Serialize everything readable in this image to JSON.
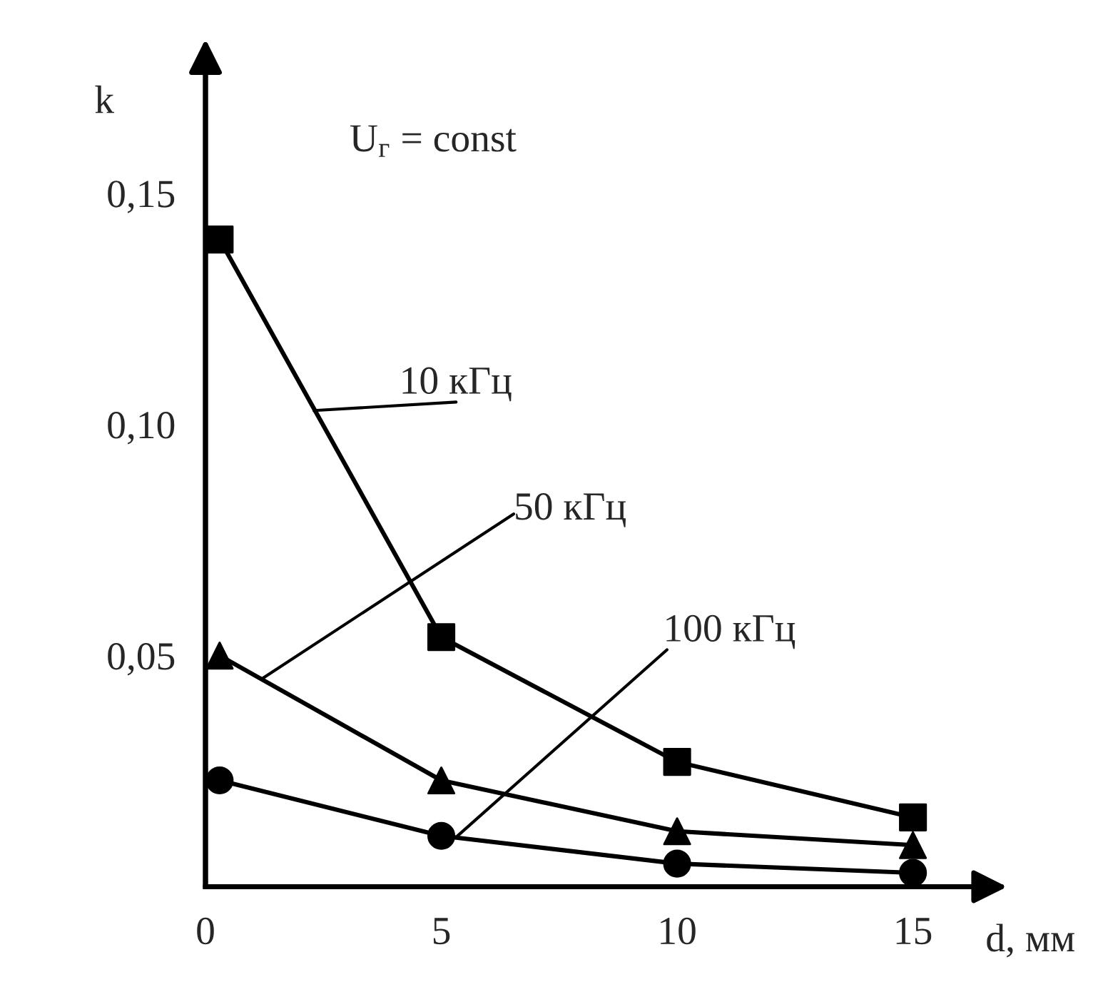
{
  "chart_data": {
    "type": "line",
    "xlabel": "d, мм",
    "ylabel": "k",
    "xlim": [
      0,
      16.5
    ],
    "ylim": [
      0,
      0.178
    ],
    "xticks": [
      {
        "value": 0,
        "label": "0"
      },
      5,
      10,
      15
    ],
    "yticks": [
      {
        "value": 0.05,
        "label": "0,05"
      },
      {
        "value": 0.1,
        "label": "0,10"
      },
      {
        "value": 0.15,
        "label": "0,15"
      }
    ],
    "grid": false,
    "legend": false,
    "line_style": "solid",
    "series": [
      {
        "color": "#000000",
        "marker": "square",
        "x": [
          0.3,
          5,
          10,
          15
        ],
        "values": [
          0.14,
          0.054,
          0.027,
          0.015
        ]
      },
      {
        "color": "#000000",
        "marker": "triangle",
        "x": [
          0.3,
          5,
          10,
          15
        ],
        "values": [
          0.05,
          0.023,
          0.012,
          0.009
        ]
      },
      {
        "color": "#000000",
        "marker": "circle",
        "x": [
          0.3,
          5,
          10,
          15
        ],
        "values": [
          0.023,
          0.011,
          0.005,
          0.003
        ]
      }
    ],
    "annotations": [
      "U$_{г}$ = const",
      {
        "text": "10 кГц",
        "x": 2.3,
        "y": 0.103
      },
      {
        "text": "50 кГц",
        "x": 1.2,
        "y": 0.045
      },
      {
        "text": "100 кГц",
        "x": 5.3,
        "y": 0.0106
      }
    ]
  }
}
